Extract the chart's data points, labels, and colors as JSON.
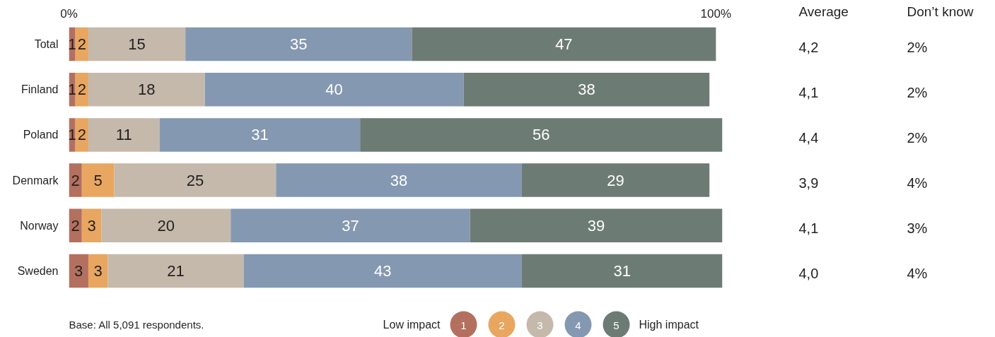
{
  "chart_data": [
    {
      "type": "bar",
      "orientation": "horizontal",
      "stacked": true,
      "categories": [
        "Total",
        "Finland",
        "Poland",
        "Denmark",
        "Norway",
        "Sweden"
      ],
      "series": [
        {
          "name": "1",
          "color": "#b3705f",
          "values": [
            1,
            1,
            1,
            2,
            2,
            3
          ]
        },
        {
          "name": "2",
          "color": "#e8a660",
          "values": [
            2,
            2,
            2,
            5,
            3,
            3
          ]
        },
        {
          "name": "3",
          "color": "#c5b9ab",
          "values": [
            15,
            18,
            11,
            25,
            20,
            21
          ]
        },
        {
          "name": "4",
          "color": "#8598b1",
          "values": [
            35,
            40,
            31,
            38,
            37,
            43
          ]
        },
        {
          "name": "5",
          "color": "#6d7b75",
          "values": [
            47,
            38,
            56,
            29,
            39,
            31
          ]
        }
      ],
      "xlim": [
        0,
        101
      ],
      "xticks": [
        {
          "value": 0,
          "label": "0%"
        },
        {
          "value": 100,
          "label": "100%"
        }
      ],
      "data_labels": true,
      "legend": "bottom",
      "annotations": [
        "Base: All 5,091 respondents.",
        "Low impact",
        "High impact"
      ]
    },
    {
      "type": "other",
      "categories": [
        "Average",
        "Don’t know"
      ],
      "annotations": [
        "4,2",
        "2%",
        "4,1",
        "2%",
        "4,4",
        "2%",
        "3,9",
        "4%",
        "4,1",
        "3%",
        "4,0",
        "4%"
      ]
    }
  ]
}
